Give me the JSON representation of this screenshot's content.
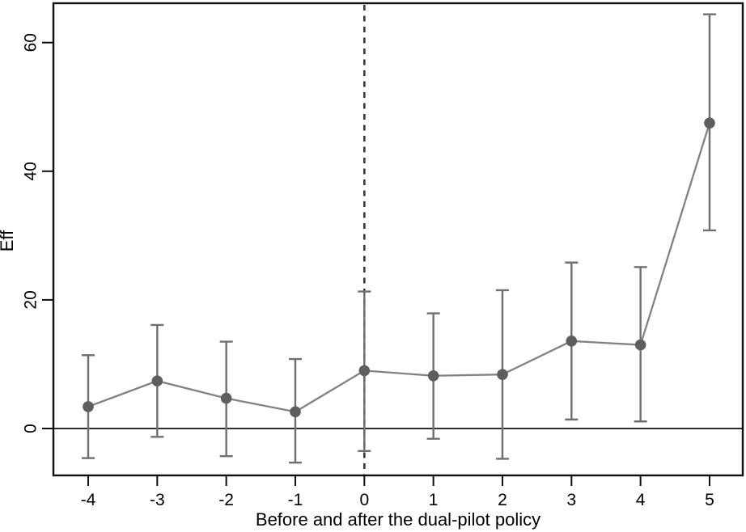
{
  "chart_data": {
    "type": "line",
    "subtype": "event-study-with-confidence-intervals",
    "title": "",
    "xlabel": "Before and after the dual-pilot policy",
    "ylabel": "Eff",
    "x": [
      -4,
      -3,
      -2,
      -1,
      0,
      1,
      2,
      3,
      4,
      5
    ],
    "xticks": [
      "-4",
      "-3",
      "-2",
      "-1",
      "0",
      "1",
      "2",
      "3",
      "4",
      "5"
    ],
    "yticks": [
      "0",
      "20",
      "40",
      "60"
    ],
    "ytick_values": [
      0,
      20,
      40,
      60
    ],
    "ylim": [
      -7.3,
      66.1
    ],
    "grid": false,
    "legend": false,
    "series": [
      {
        "name": "Eff point estimate",
        "values": [
          3.4,
          7.4,
          4.7,
          2.6,
          9.0,
          8.2,
          8.4,
          13.6,
          13.0,
          47.5
        ],
        "ci_low": [
          -4.6,
          -1.3,
          -4.3,
          -5.3,
          -3.5,
          -1.6,
          -4.7,
          1.4,
          1.1,
          30.8
        ],
        "ci_high": [
          11.4,
          16.1,
          13.5,
          10.8,
          21.3,
          17.9,
          21.5,
          25.8,
          25.1,
          64.4
        ]
      }
    ],
    "reference_lines": {
      "vertical_dashed_at_x": 0,
      "horizontal_solid_at_y": 0
    },
    "colors": {
      "marker": "#5e5e5e",
      "trend_line": "#828282",
      "error_bar": "#6f6f6f",
      "axis": "#0f0f0f",
      "dashed_line": "#3a3a3a",
      "background": "#ffffff",
      "text": "#000000"
    }
  }
}
